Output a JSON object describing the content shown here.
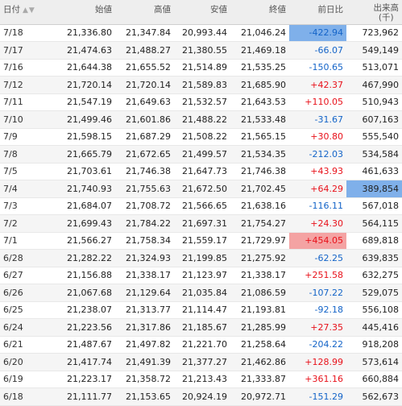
{
  "headers": {
    "date": "日付",
    "open": "始値",
    "high": "高値",
    "low": "安値",
    "close": "終値",
    "change": "前日比",
    "volume_line1": "出来高",
    "volume_line2": "(千)"
  },
  "sort_icons": [
    "triangle-up-icon",
    "triangle-down-icon"
  ],
  "colors": {
    "up": "#e8111a",
    "down": "#1464c8",
    "highlight_blue": "#7fb0ea",
    "highlight_red": "#f4a3a3"
  },
  "rows": [
    {
      "date": "7/18",
      "open": "21,336.80",
      "high": "21,347.84",
      "low": "20,993.44",
      "close": "21,046.24",
      "change": "-422.94",
      "volume": "723,962",
      "dir": "down",
      "hl_change": "blue"
    },
    {
      "date": "7/17",
      "open": "21,474.63",
      "high": "21,488.27",
      "low": "21,380.55",
      "close": "21,469.18",
      "change": "-66.07",
      "volume": "549,149",
      "dir": "down"
    },
    {
      "date": "7/16",
      "open": "21,644.38",
      "high": "21,655.52",
      "low": "21,514.89",
      "close": "21,535.25",
      "change": "-150.65",
      "volume": "513,071",
      "dir": "down"
    },
    {
      "date": "7/12",
      "open": "21,720.14",
      "high": "21,720.14",
      "low": "21,589.83",
      "close": "21,685.90",
      "change": "+42.37",
      "volume": "467,990",
      "dir": "up"
    },
    {
      "date": "7/11",
      "open": "21,547.19",
      "high": "21,649.63",
      "low": "21,532.57",
      "close": "21,643.53",
      "change": "+110.05",
      "volume": "510,943",
      "dir": "up"
    },
    {
      "date": "7/10",
      "open": "21,499.46",
      "high": "21,601.86",
      "low": "21,488.22",
      "close": "21,533.48",
      "change": "-31.67",
      "volume": "607,163",
      "dir": "down"
    },
    {
      "date": "7/9",
      "open": "21,598.15",
      "high": "21,687.29",
      "low": "21,508.22",
      "close": "21,565.15",
      "change": "+30.80",
      "volume": "555,540",
      "dir": "up"
    },
    {
      "date": "7/8",
      "open": "21,665.79",
      "high": "21,672.65",
      "low": "21,499.57",
      "close": "21,534.35",
      "change": "-212.03",
      "volume": "534,584",
      "dir": "down"
    },
    {
      "date": "7/5",
      "open": "21,703.61",
      "high": "21,746.38",
      "low": "21,647.73",
      "close": "21,746.38",
      "change": "+43.93",
      "volume": "461,633",
      "dir": "up"
    },
    {
      "date": "7/4",
      "open": "21,740.93",
      "high": "21,755.63",
      "low": "21,672.50",
      "close": "21,702.45",
      "change": "+64.29",
      "volume": "389,854",
      "dir": "up",
      "hl_volume": "blue"
    },
    {
      "date": "7/3",
      "open": "21,684.07",
      "high": "21,708.72",
      "low": "21,566.65",
      "close": "21,638.16",
      "change": "-116.11",
      "volume": "567,018",
      "dir": "down"
    },
    {
      "date": "7/2",
      "open": "21,699.43",
      "high": "21,784.22",
      "low": "21,697.31",
      "close": "21,754.27",
      "change": "+24.30",
      "volume": "564,115",
      "dir": "up"
    },
    {
      "date": "7/1",
      "open": "21,566.27",
      "high": "21,758.34",
      "low": "21,559.17",
      "close": "21,729.97",
      "change": "+454.05",
      "volume": "689,818",
      "dir": "up",
      "hl_change": "red"
    },
    {
      "date": "6/28",
      "open": "21,282.22",
      "high": "21,324.93",
      "low": "21,199.85",
      "close": "21,275.92",
      "change": "-62.25",
      "volume": "639,835",
      "dir": "down"
    },
    {
      "date": "6/27",
      "open": "21,156.88",
      "high": "21,338.17",
      "low": "21,123.97",
      "close": "21,338.17",
      "change": "+251.58",
      "volume": "632,275",
      "dir": "up"
    },
    {
      "date": "6/26",
      "open": "21,067.68",
      "high": "21,129.64",
      "low": "21,035.84",
      "close": "21,086.59",
      "change": "-107.22",
      "volume": "529,075",
      "dir": "down"
    },
    {
      "date": "6/25",
      "open": "21,238.07",
      "high": "21,313.77",
      "low": "21,114.47",
      "close": "21,193.81",
      "change": "-92.18",
      "volume": "556,108",
      "dir": "down"
    },
    {
      "date": "6/24",
      "open": "21,223.56",
      "high": "21,317.86",
      "low": "21,185.67",
      "close": "21,285.99",
      "change": "+27.35",
      "volume": "445,416",
      "dir": "up"
    },
    {
      "date": "6/21",
      "open": "21,487.67",
      "high": "21,497.82",
      "low": "21,221.70",
      "close": "21,258.64",
      "change": "-204.22",
      "volume": "918,208",
      "dir": "down"
    },
    {
      "date": "6/20",
      "open": "21,417.74",
      "high": "21,491.39",
      "low": "21,377.27",
      "close": "21,462.86",
      "change": "+128.99",
      "volume": "573,614",
      "dir": "up"
    },
    {
      "date": "6/19",
      "open": "21,223.17",
      "high": "21,358.72",
      "low": "21,213.43",
      "close": "21,333.87",
      "change": "+361.16",
      "volume": "660,884",
      "dir": "up"
    },
    {
      "date": "6/18",
      "open": "21,111.77",
      "high": "21,153.65",
      "low": "20,924.19",
      "close": "20,972.71",
      "change": "-151.29",
      "volume": "562,673",
      "dir": "down"
    }
  ]
}
